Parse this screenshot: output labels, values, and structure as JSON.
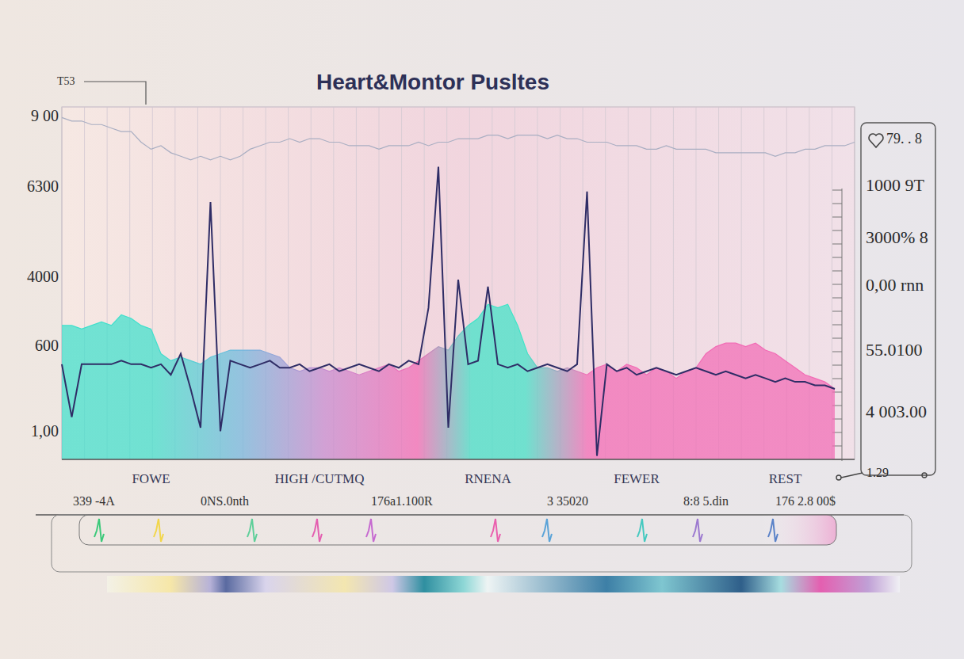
{
  "chart_data": {
    "type": "line",
    "title": "Heart&Montor Pusltes",
    "categories": [
      null,
      null,
      null,
      null,
      null,
      null,
      null,
      null,
      null,
      "FOWE",
      null,
      null,
      null,
      null,
      null,
      null,
      null,
      null,
      null,
      null,
      null,
      null,
      null,
      null,
      null,
      null,
      "HIGH /CUTMQ",
      null,
      null,
      null,
      null,
      null,
      null,
      null,
      null,
      null,
      null,
      null,
      null,
      null,
      null,
      null,
      null,
      "RNENA",
      null,
      null,
      null,
      null,
      null,
      null,
      null,
      null,
      null,
      null,
      null,
      null,
      null,
      null,
      "FEWER",
      null,
      null,
      null,
      null,
      null,
      null,
      null,
      null,
      null,
      null,
      null,
      null,
      null,
      null,
      "REST",
      null,
      null,
      null,
      null,
      null,
      null,
      null
    ],
    "series": [
      {
        "type": "area",
        "color": "#f26bb5",
        "values": [
          38,
          38,
          37,
          38,
          39,
          38,
          41,
          40,
          38,
          37,
          30,
          28,
          29,
          28,
          27,
          29,
          30,
          31,
          31,
          31,
          31,
          30,
          29,
          26,
          25,
          26,
          26,
          25,
          26,
          25,
          24,
          25,
          26,
          27,
          25,
          26,
          28,
          30,
          32,
          31,
          35,
          38,
          40,
          44,
          43,
          44,
          38,
          30,
          26,
          26,
          25,
          26,
          25,
          24,
          26,
          27,
          25,
          27,
          26,
          24,
          26,
          25,
          23,
          25,
          26,
          30,
          32,
          33,
          33,
          32,
          33,
          31,
          30,
          28,
          26,
          24,
          23,
          22,
          20,
          null,
          null
        ]
      },
      {
        "type": "line",
        "color": "#a9aec2",
        "values": [
          97,
          96,
          96,
          95,
          95,
          94,
          93,
          93,
          90,
          88,
          89,
          87,
          86,
          85,
          86,
          85,
          86,
          85,
          86,
          88,
          89,
          90,
          90,
          91,
          90,
          91,
          91,
          90,
          90,
          89,
          89,
          89,
          88,
          89,
          89,
          89,
          90,
          89,
          90,
          90,
          91,
          91,
          91,
          92,
          92,
          91,
          92,
          92,
          92,
          91,
          92,
          91,
          91,
          90,
          90,
          90,
          89,
          89,
          89,
          88,
          88,
          89,
          88,
          88,
          88,
          88,
          87,
          87,
          87,
          87,
          87,
          87,
          86,
          87,
          87,
          88,
          88,
          89,
          89,
          89,
          90
        ]
      },
      {
        "type": "line",
        "color": "#2f2d66",
        "values": [
          27,
          12,
          27,
          27,
          27,
          27,
          28,
          27,
          27,
          26,
          27,
          24,
          30,
          20,
          9,
          73,
          8,
          28,
          27,
          26,
          27,
          28,
          26,
          26,
          27,
          25,
          26,
          27,
          25,
          26,
          27,
          26,
          25,
          27,
          26,
          28,
          27,
          43,
          83,
          9,
          51,
          27,
          28,
          49,
          27,
          26,
          27,
          25,
          26,
          27,
          26,
          25,
          27,
          76,
          1,
          27,
          25,
          26,
          24,
          25,
          26,
          25,
          24,
          25,
          26,
          25,
          24,
          25,
          24,
          23,
          24,
          23,
          22,
          23,
          22,
          22,
          21,
          21,
          20,
          null,
          null
        ]
      }
    ],
    "ylim": [
      0,
      100
    ],
    "yticks": [
      0,
      10,
      20,
      30,
      40,
      50,
      60,
      70,
      80,
      90,
      100
    ],
    "grid": true,
    "tick_labels": "x",
    "annotations": {
      "corner": "T53",
      "left": [
        "9 00",
        "6300",
        "4000",
        "600",
        "1,00"
      ],
      "right": [
        "79. . 8",
        "1000 9T",
        "3000% 8",
        "0,00 rnn",
        "55.0100",
        "4 003.00"
      ],
      "corner_value": "1.29",
      "strip": [
        "339 -4A",
        "0NS.0nth",
        "176a1.100R",
        "3 35020",
        "8:8 5.din",
        "176 2.8 00$"
      ]
    }
  }
}
